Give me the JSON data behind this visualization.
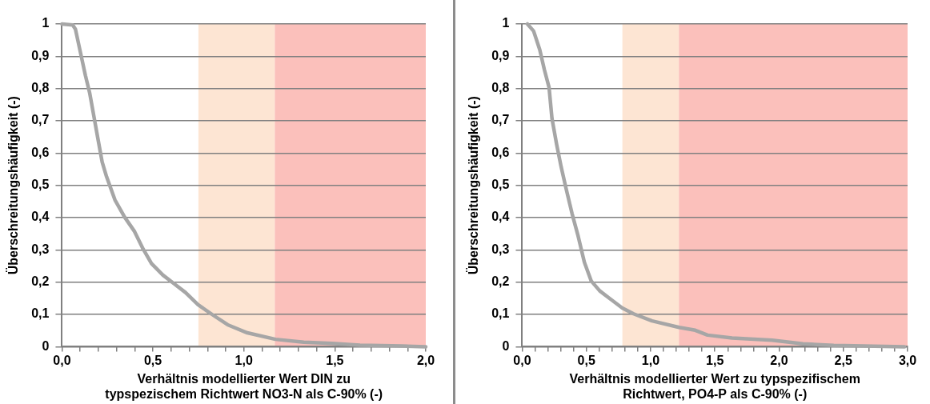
{
  "chart_data": [
    {
      "type": "line",
      "xlabel": "Verhältnis modellierter Wert DIN zu typspezischem Richtwert NO3-N als C-90% (-)",
      "ylabel": "Überschreitungshäufigkeit (-)",
      "series": [
        {
          "color": "#a6a6a6",
          "x": [
            0,
            0.059,
            0.074,
            0.098,
            0.129,
            0.152,
            0.175,
            0.198,
            0.221,
            0.245,
            0.291,
            0.345,
            0.399,
            0.446,
            0.492,
            0.555,
            0.617,
            0.679,
            0.748,
            0.833,
            0.911,
            1.019,
            1.174,
            1.329,
            1.484,
            1.639,
            1.871,
            2.0
          ],
          "values": [
            1.0,
            0.997,
            0.984,
            0.921,
            0.84,
            0.787,
            0.715,
            0.643,
            0.572,
            0.527,
            0.455,
            0.401,
            0.357,
            0.303,
            0.258,
            0.222,
            0.195,
            0.168,
            0.13,
            0.097,
            0.068,
            0.043,
            0.023,
            0.014,
            0.01,
            0.005,
            0.002,
            0
          ]
        }
      ],
      "xlim": [
        0,
        2
      ],
      "ylim": [
        0,
        1
      ],
      "xticks": [
        {
          "value": 0,
          "label": "0,0"
        },
        {
          "value": 0.1,
          "label": null
        },
        {
          "value": 0.2,
          "label": null
        },
        {
          "value": 0.3,
          "label": null
        },
        {
          "value": 0.4,
          "label": null
        },
        {
          "value": 0.5,
          "label": "0,5"
        },
        {
          "value": 0.6,
          "label": null
        },
        {
          "value": 0.7,
          "label": null
        },
        {
          "value": 0.8,
          "label": null
        },
        {
          "value": 0.9,
          "label": null
        },
        {
          "value": 1,
          "label": "1,0"
        },
        {
          "value": 1.1,
          "label": null
        },
        {
          "value": 1.2,
          "label": null
        },
        {
          "value": 1.3,
          "label": null
        },
        {
          "value": 1.4,
          "label": null
        },
        {
          "value": 1.5,
          "label": "1,5"
        },
        {
          "value": 1.6,
          "label": null
        },
        {
          "value": 1.7,
          "label": null
        },
        {
          "value": 1.8,
          "label": null
        },
        {
          "value": 1.9,
          "label": null
        },
        {
          "value": 2,
          "label": "2,0"
        }
      ],
      "yticks": [
        {
          "value": 0,
          "label": "0"
        },
        {
          "value": 0.1,
          "label": "0,1"
        },
        {
          "value": 0.2,
          "label": "0,2"
        },
        {
          "value": 0.3,
          "label": "0,3"
        },
        {
          "value": 0.4,
          "label": "0,4"
        },
        {
          "value": 0.5,
          "label": "0,5"
        },
        {
          "value": 0.6,
          "label": "0,6"
        },
        {
          "value": 0.7,
          "label": "0,7"
        },
        {
          "value": 0.8,
          "label": "0,8"
        },
        {
          "value": 0.9,
          "label": "0,9"
        },
        {
          "value": 1,
          "label": "1"
        }
      ],
      "bands": [
        {
          "axis": "x",
          "from": 0.75,
          "to": 1.17,
          "color": "#fde5d3"
        },
        {
          "axis": "x",
          "from": 1.17,
          "to": 2.0,
          "color": "#fbc0bb"
        }
      ],
      "grid": "y",
      "legend": false,
      "marker": "none",
      "line_style": "solid"
    },
    {
      "type": "line",
      "xlabel": "Verhältnis modellierter Wert zu typspezifischem Richtwert, PO4-P als C-90% (-)",
      "ylabel": "Überschreitungshäufigkeit (-)",
      "series": [
        {
          "color": "#a6a6a6",
          "x": [
            0.041,
            0.089,
            0.137,
            0.173,
            0.209,
            0.232,
            0.268,
            0.304,
            0.34,
            0.388,
            0.436,
            0.484,
            0.537,
            0.604,
            0.676,
            0.779,
            0.867,
            1.011,
            1.222,
            1.347,
            1.443,
            1.634,
            1.946,
            2.185,
            2.425,
            2.976
          ],
          "values": [
            1.0,
            0.978,
            0.92,
            0.858,
            0.804,
            0.707,
            0.627,
            0.556,
            0.493,
            0.413,
            0.342,
            0.262,
            0.204,
            0.173,
            0.151,
            0.12,
            0.102,
            0.08,
            0.06,
            0.051,
            0.036,
            0.027,
            0.02,
            0.009,
            0.004,
            0
          ]
        }
      ],
      "xlim": [
        0,
        3
      ],
      "ylim": [
        0,
        1
      ],
      "xticks": [
        {
          "value": 0,
          "label": "0,0"
        },
        {
          "value": 0.1,
          "label": null
        },
        {
          "value": 0.2,
          "label": null
        },
        {
          "value": 0.3,
          "label": null
        },
        {
          "value": 0.4,
          "label": null
        },
        {
          "value": 0.5,
          "label": "0,5"
        },
        {
          "value": 0.6,
          "label": null
        },
        {
          "value": 0.7,
          "label": null
        },
        {
          "value": 0.8,
          "label": null
        },
        {
          "value": 0.9,
          "label": null
        },
        {
          "value": 1,
          "label": "1,0"
        },
        {
          "value": 1.1,
          "label": null
        },
        {
          "value": 1.2,
          "label": null
        },
        {
          "value": 1.3,
          "label": null
        },
        {
          "value": 1.4,
          "label": null
        },
        {
          "value": 1.5,
          "label": "1,5"
        },
        {
          "value": 1.6,
          "label": null
        },
        {
          "value": 1.7,
          "label": null
        },
        {
          "value": 1.8,
          "label": null
        },
        {
          "value": 1.9,
          "label": null
        },
        {
          "value": 2,
          "label": "2,0"
        },
        {
          "value": 2.1,
          "label": null
        },
        {
          "value": 2.2,
          "label": null
        },
        {
          "value": 2.3,
          "label": null
        },
        {
          "value": 2.4,
          "label": null
        },
        {
          "value": 2.5,
          "label": "2,5"
        },
        {
          "value": 2.6,
          "label": null
        },
        {
          "value": 2.7,
          "label": null
        },
        {
          "value": 2.8,
          "label": null
        },
        {
          "value": 2.9,
          "label": null
        },
        {
          "value": 3,
          "label": "3,0"
        }
      ],
      "yticks": [
        {
          "value": 0,
          "label": "0"
        },
        {
          "value": 0.1,
          "label": "0,1"
        },
        {
          "value": 0.2,
          "label": "0,2"
        },
        {
          "value": 0.3,
          "label": "0,3"
        },
        {
          "value": 0.4,
          "label": "0,4"
        },
        {
          "value": 0.5,
          "label": "0,5"
        },
        {
          "value": 0.6,
          "label": "0,6"
        },
        {
          "value": 0.7,
          "label": "0,7"
        },
        {
          "value": 0.8,
          "label": "0,8"
        },
        {
          "value": 0.9,
          "label": "0,9"
        },
        {
          "value": 1,
          "label": "1"
        }
      ],
      "bands": [
        {
          "axis": "x",
          "from": 0.78,
          "to": 1.22,
          "color": "#fde5d3"
        },
        {
          "axis": "x",
          "from": 1.22,
          "to": 3.0,
          "color": "#fbc0bb"
        }
      ],
      "grid": "y",
      "legend": false,
      "marker": "none",
      "line_style": "solid"
    }
  ]
}
